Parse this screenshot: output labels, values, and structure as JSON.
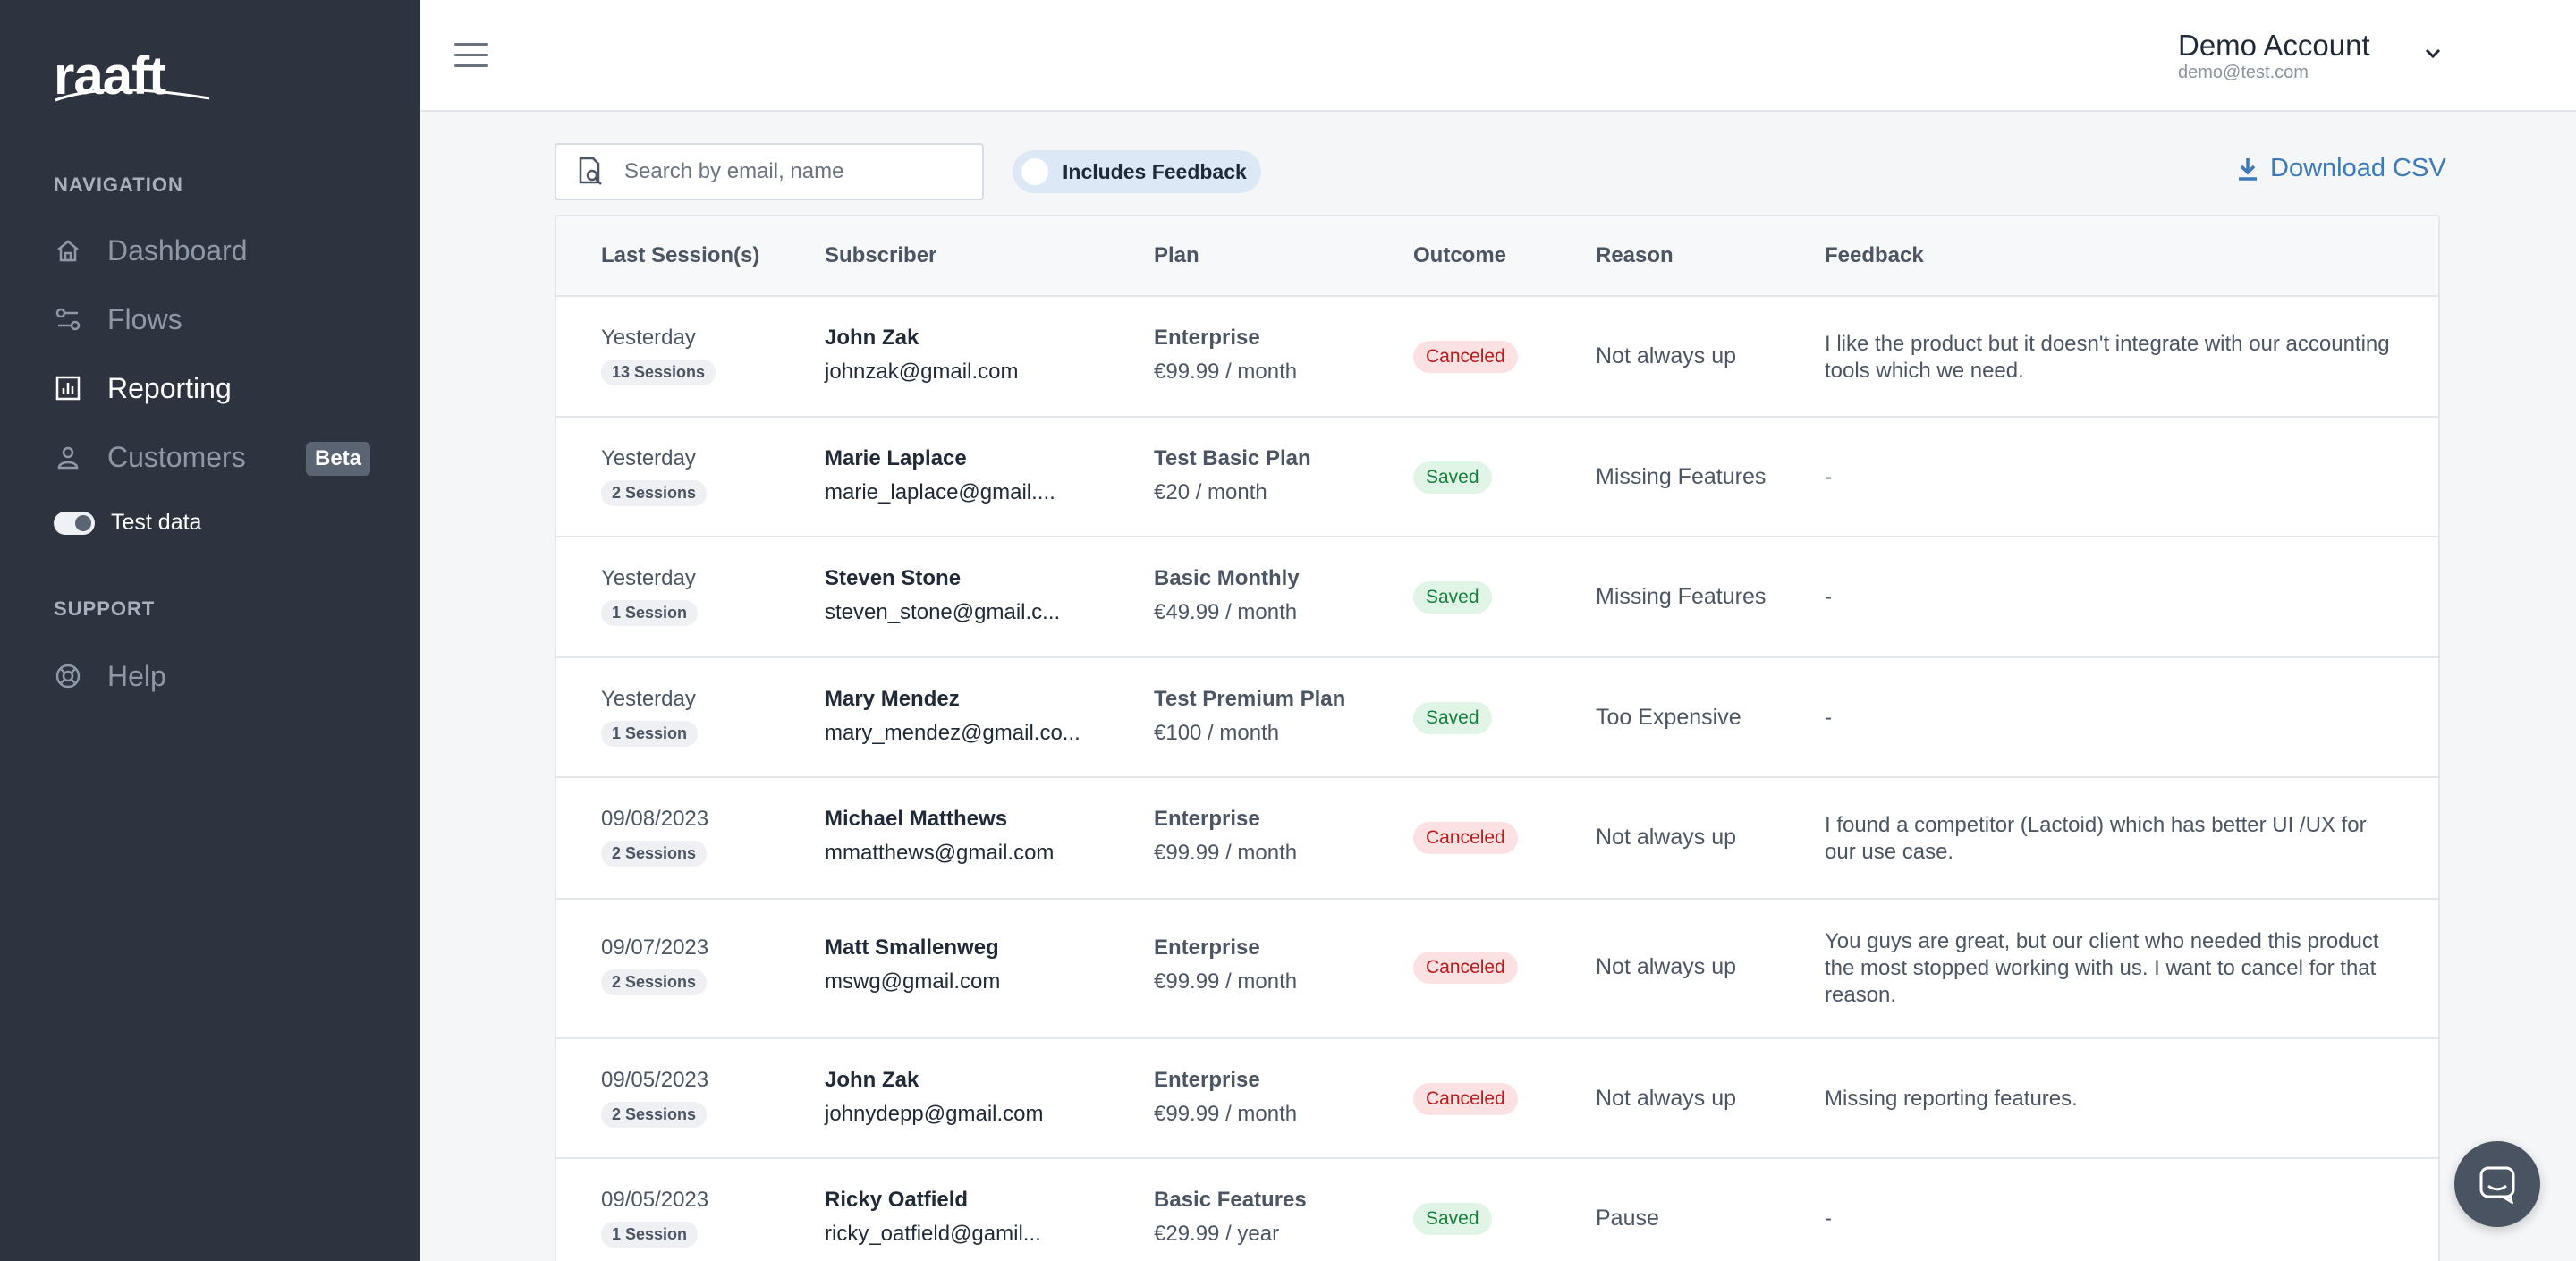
{
  "brand": {
    "logo_text": "raaft"
  },
  "sidebar": {
    "navigation_heading": "NAVIGATION",
    "items": [
      {
        "label": "Dashboard",
        "icon": "home-icon"
      },
      {
        "label": "Flows",
        "icon": "flows-icon"
      },
      {
        "label": "Reporting",
        "icon": "chart-icon",
        "active": true
      },
      {
        "label": "Customers",
        "icon": "user-icon",
        "badge": "Beta"
      }
    ],
    "test_data_label": "Test data",
    "support_heading": "SUPPORT",
    "help_label": "Help"
  },
  "header": {
    "account_name": "Demo Account",
    "account_email": "demo@test.com"
  },
  "toolbar": {
    "search_placeholder": "Search by email, name",
    "feedback_filter_label": "Includes Feedback",
    "download_label": "Download CSV"
  },
  "table": {
    "columns": [
      "Last Session(s)",
      "Subscriber",
      "Plan",
      "Outcome",
      "Reason",
      "Feedback"
    ],
    "rows": [
      {
        "date": "Yesterday",
        "sessions": "13 Sessions",
        "name": "John Zak",
        "email": "johnzak@gmail.com",
        "plan": "Enterprise",
        "price": "€99.99 / month",
        "outcome": "Canceled",
        "reason": "Not always up",
        "feedback": "I like the product but it doesn't integrate with our accounting tools which we need."
      },
      {
        "date": "Yesterday",
        "sessions": "2 Sessions",
        "name": "Marie Laplace",
        "email": "marie_laplace@gmail....",
        "plan": "Test Basic Plan",
        "price": "€20 / month",
        "outcome": "Saved",
        "reason": "Missing Features",
        "feedback": "-"
      },
      {
        "date": "Yesterday",
        "sessions": "1 Session",
        "name": "Steven Stone",
        "email": "steven_stone@gmail.c...",
        "plan": "Basic Monthly",
        "price": "€49.99 / month",
        "outcome": "Saved",
        "reason": "Missing Features",
        "feedback": "-"
      },
      {
        "date": "Yesterday",
        "sessions": "1 Session",
        "name": "Mary Mendez",
        "email": "mary_mendez@gmail.co...",
        "plan": "Test Premium Plan",
        "price": "€100 / month",
        "outcome": "Saved",
        "reason": "Too Expensive",
        "feedback": "-"
      },
      {
        "date": "09/08/2023",
        "sessions": "2 Sessions",
        "name": "Michael Matthews",
        "email": "mmatthews@gmail.com",
        "plan": "Enterprise",
        "price": "€99.99 / month",
        "outcome": "Canceled",
        "reason": "Not always up",
        "feedback": "I found a competitor (Lactoid) which has better UI /UX for our use case."
      },
      {
        "date": "09/07/2023",
        "sessions": "2 Sessions",
        "name": "Matt Smallenweg",
        "email": "mswg@gmail.com",
        "plan": "Enterprise",
        "price": "€99.99 / month",
        "outcome": "Canceled",
        "reason": "Not always up",
        "feedback": "You guys are great, but our client who needed this product the most stopped working with us. I want to cancel for that reason."
      },
      {
        "date": "09/05/2023",
        "sessions": "2 Sessions",
        "name": "John Zak",
        "email": "johnydepp@gmail.com",
        "plan": "Enterprise",
        "price": "€99.99 / month",
        "outcome": "Canceled",
        "reason": "Not always up",
        "feedback": "Missing reporting features."
      },
      {
        "date": "09/05/2023",
        "sessions": "1 Session",
        "name": "Ricky Oatfield",
        "email": "ricky_oatfield@gamil...",
        "plan": "Basic Features",
        "price": "€29.99 / year",
        "outcome": "Saved",
        "reason": "Pause",
        "feedback": "-"
      }
    ]
  },
  "colors": {
    "sidebar": "#2d3440",
    "accent": "#3d7ab8",
    "canceled": "#b91c1c",
    "saved": "#15803d"
  }
}
